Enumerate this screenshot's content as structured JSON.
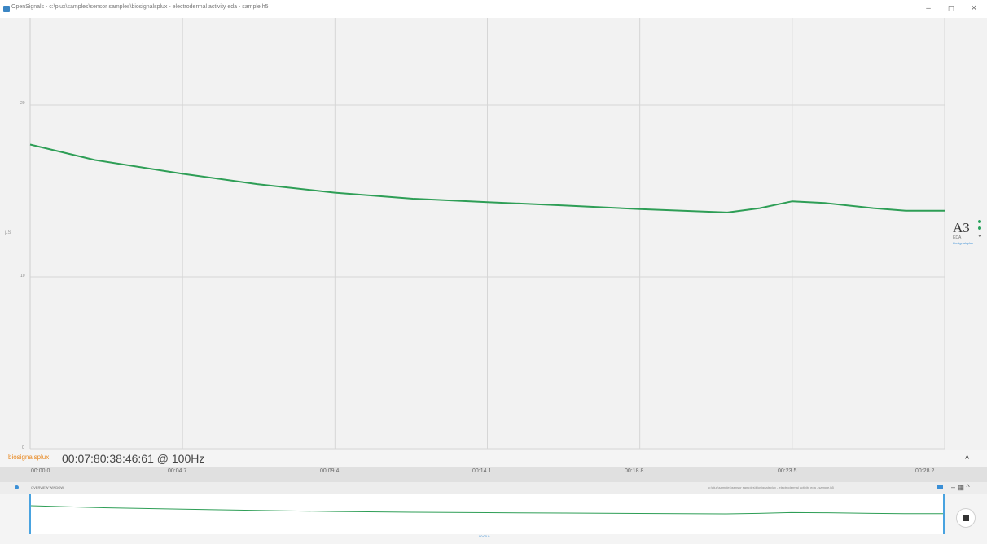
{
  "window": {
    "title": "OpenSignals - c:\\plux\\samples\\sensor samples\\biosignalsplux - electrodermal activity eda - sample.h5",
    "minimize": "–",
    "maximize": "◻",
    "close": "✕"
  },
  "plot": {
    "y_ticks": [
      "20",
      "10",
      "0"
    ],
    "y_axis_label": "µS",
    "x_ticks": [
      "00:00.0",
      "00:04.7",
      "00:09.4",
      "00:14.1",
      "00:18.8",
      "00:23.5",
      "00:28.2"
    ],
    "line_color": "#2e9e56",
    "signal_trace": [
      {
        "t": 0.0,
        "v": 17.7
      },
      {
        "t": 2.0,
        "v": 16.8
      },
      {
        "t": 4.7,
        "v": 16.0
      },
      {
        "t": 7.0,
        "v": 15.4
      },
      {
        "t": 9.4,
        "v": 14.9
      },
      {
        "t": 11.8,
        "v": 14.55
      },
      {
        "t": 14.1,
        "v": 14.35
      },
      {
        "t": 16.5,
        "v": 14.15
      },
      {
        "t": 18.8,
        "v": 13.95
      },
      {
        "t": 21.5,
        "v": 13.75
      },
      {
        "t": 22.5,
        "v": 14.0
      },
      {
        "t": 23.5,
        "v": 14.4
      },
      {
        "t": 24.5,
        "v": 14.3
      },
      {
        "t": 26.0,
        "v": 14.0
      },
      {
        "t": 27.0,
        "v": 13.85
      },
      {
        "t": 28.2,
        "v": 13.85
      }
    ]
  },
  "channel": {
    "label": "A3",
    "type": "EDA",
    "device": "biosignalsplux"
  },
  "status": {
    "brand": "biosignalsplux",
    "timestamp": "00:07:80:38:46:61 @ 100Hz",
    "expand": "^"
  },
  "overview": {
    "label": "OVERVIEW WINDOW",
    "path": "c:\\plux\\samples\\sensor samples\\biosignalsplux - electrodermal activity eda - sample.h5",
    "time": "00:00.0",
    "controls": "– ▦ ^"
  },
  "colors": {
    "accent_blue": "#3b8fd6",
    "brand_orange": "#e88a24",
    "signal_green": "#2e9e56"
  }
}
